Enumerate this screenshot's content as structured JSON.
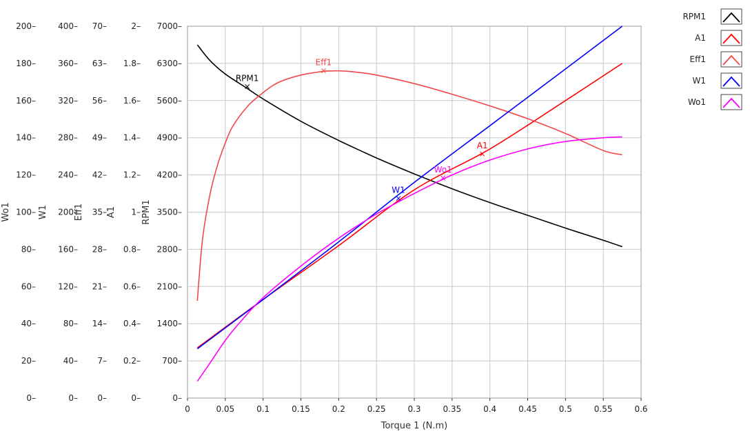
{
  "chart_data": {
    "type": "line",
    "xlabel": "Torque 1 (N.m)",
    "xlim": [
      0,
      0.6
    ],
    "x_ticks": [
      "0",
      "0.05",
      "0.1",
      "0.15",
      "0.2",
      "0.25",
      "0.3",
      "0.35",
      "0.4",
      "0.45",
      "0.5",
      "0.55",
      "0.6"
    ],
    "grid": true,
    "legend_position": "right",
    "y_axes": [
      {
        "label": "Wo1",
        "lim": [
          0,
          200
        ],
        "ticks": [
          "0",
          "20",
          "40",
          "60",
          "80",
          "100",
          "120",
          "140",
          "160",
          "180",
          "200"
        ]
      },
      {
        "label": "W1",
        "lim": [
          0,
          400
        ],
        "ticks": [
          "0",
          "40",
          "80",
          "120",
          "160",
          "200",
          "240",
          "280",
          "320",
          "360",
          "400"
        ]
      },
      {
        "label": "Eff1",
        "lim": [
          0,
          70
        ],
        "ticks": [
          "0",
          "7",
          "14",
          "21",
          "28",
          "35",
          "42",
          "49",
          "56",
          "63",
          "70"
        ]
      },
      {
        "label": "A1",
        "lim": [
          0,
          2
        ],
        "ticks": [
          "0",
          "0.2",
          "0.4",
          "0.6",
          "0.8",
          "1",
          "1.2",
          "1.4",
          "1.6",
          "1.8",
          "2"
        ]
      },
      {
        "label": "RPM1",
        "lim": [
          0,
          7000
        ],
        "ticks": [
          "0",
          "700",
          "1400",
          "2100",
          "2800",
          "3500",
          "4200",
          "4900",
          "5600",
          "6300",
          "7000"
        ]
      }
    ],
    "series": [
      {
        "name": "RPM1",
        "axis": "RPM1",
        "color": "#000000",
        "x": [
          0.013,
          0.03,
          0.05,
          0.08,
          0.1,
          0.15,
          0.2,
          0.25,
          0.3,
          0.35,
          0.4,
          0.45,
          0.5,
          0.55,
          0.575
        ],
        "y": [
          6650,
          6350,
          6100,
          5820,
          5630,
          5210,
          4850,
          4520,
          4220,
          3940,
          3680,
          3440,
          3200,
          2970,
          2850
        ],
        "label": {
          "text": "RPM1",
          "x": 0.079,
          "y": 5850
        }
      },
      {
        "name": "A1",
        "axis": "A1",
        "color": "#ff0000",
        "x": [
          0.013,
          0.1,
          0.2,
          0.3,
          0.4,
          0.5,
          0.575
        ],
        "y": [
          0.27,
          0.53,
          0.82,
          1.12,
          1.34,
          1.6,
          1.8
        ],
        "label": {
          "text": "A1",
          "x": 0.39,
          "y": 1.31
        }
      },
      {
        "name": "Eff1",
        "axis": "Eff1",
        "color": "#f04848",
        "x": [
          0.013,
          0.02,
          0.03,
          0.04,
          0.05,
          0.06,
          0.08,
          0.1,
          0.12,
          0.15,
          0.18,
          0.2,
          0.22,
          0.25,
          0.3,
          0.35,
          0.4,
          0.45,
          0.5,
          0.55,
          0.575
        ],
        "y": [
          18.3,
          30,
          38.5,
          44,
          48,
          51.2,
          55,
          57.5,
          59.4,
          60.8,
          61.5,
          61.6,
          61.4,
          60.8,
          59.2,
          57.2,
          55,
          52.6,
          49.8,
          46.6,
          45.8
        ],
        "label": {
          "text": "Eff1",
          "x": 0.18,
          "y": 61.5
        }
      },
      {
        "name": "W1",
        "axis": "W1",
        "color": "#0000ff",
        "x": [
          0.013,
          0.1,
          0.2,
          0.3,
          0.4,
          0.5,
          0.575
        ],
        "y": [
          53,
          106,
          168,
          232,
          293,
          354,
          400
        ],
        "label": {
          "text": "W1",
          "x": 0.279,
          "y": 214
        }
      },
      {
        "name": "Wo1",
        "axis": "Wo1",
        "color": "#ff00ff",
        "x": [
          0.013,
          0.03,
          0.05,
          0.07,
          0.1,
          0.15,
          0.2,
          0.25,
          0.3,
          0.35,
          0.4,
          0.45,
          0.5,
          0.55,
          0.575
        ],
        "y": [
          9,
          19,
          31,
          41,
          54,
          71,
          86,
          99,
          110,
          120,
          128,
          134,
          138,
          140,
          140.5
        ],
        "label": {
          "text": "Wo1",
          "x": 0.338,
          "y": 118
        }
      }
    ],
    "legend": [
      "RPM1",
      "A1",
      "Eff1",
      "W1",
      "Wo1"
    ]
  }
}
